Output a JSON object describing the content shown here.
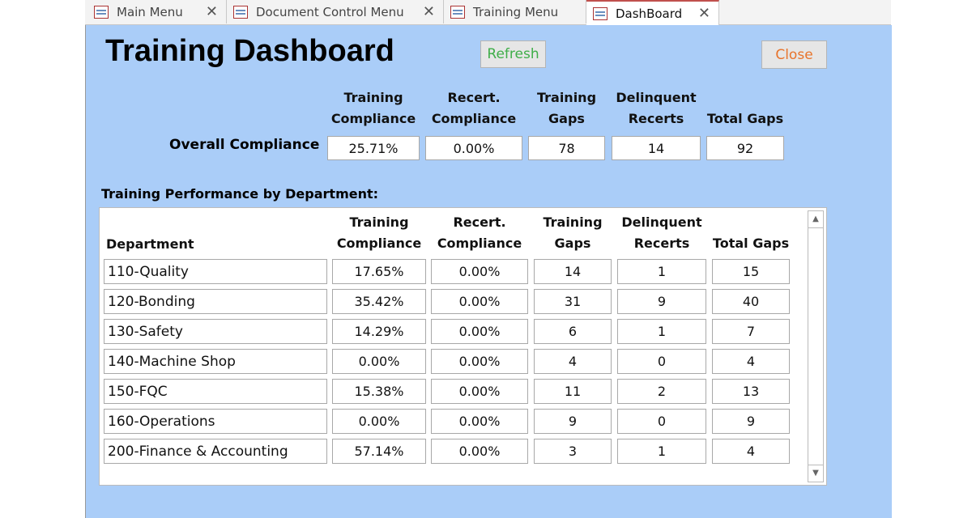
{
  "tabs": [
    {
      "label": "Main Menu",
      "closable": true
    },
    {
      "label": "Document Control Menu",
      "closable": true
    },
    {
      "label": "Training Menu",
      "closable": false
    },
    {
      "label": "DashBoard",
      "closable": true,
      "active": true
    }
  ],
  "title": "Training Dashboard",
  "buttons": {
    "refresh": "Refresh",
    "close": "Close"
  },
  "columns": [
    [
      "Training",
      "Compliance"
    ],
    [
      "Recert.",
      "Compliance"
    ],
    [
      "Training",
      "Gaps"
    ],
    [
      "Delinquent",
      "Recerts"
    ],
    [
      "",
      "Total Gaps"
    ]
  ],
  "overall": {
    "label": "Overall Compliance",
    "values": [
      "25.71%",
      "0.00%",
      "78",
      "14",
      "92"
    ]
  },
  "section_label": "Training Performance by Department:",
  "dept_header": "Department",
  "rows": [
    [
      "110-Quality",
      "17.65%",
      "0.00%",
      "14",
      "1",
      "15"
    ],
    [
      "120-Bonding",
      "35.42%",
      "0.00%",
      "31",
      "9",
      "40"
    ],
    [
      "130-Safety",
      "14.29%",
      "0.00%",
      "6",
      "1",
      "7"
    ],
    [
      "140-Machine Shop",
      "0.00%",
      "0.00%",
      "4",
      "0",
      "4"
    ],
    [
      "150-FQC",
      "15.38%",
      "0.00%",
      "11",
      "2",
      "13"
    ],
    [
      "160-Operations",
      "0.00%",
      "0.00%",
      "9",
      "0",
      "9"
    ],
    [
      "200-Finance & Accounting",
      "57.14%",
      "0.00%",
      "3",
      "1",
      "4"
    ]
  ],
  "colors": {
    "form_bg": "#aacdf8",
    "refresh_text": "#3fae49",
    "close_text": "#e8742c"
  }
}
